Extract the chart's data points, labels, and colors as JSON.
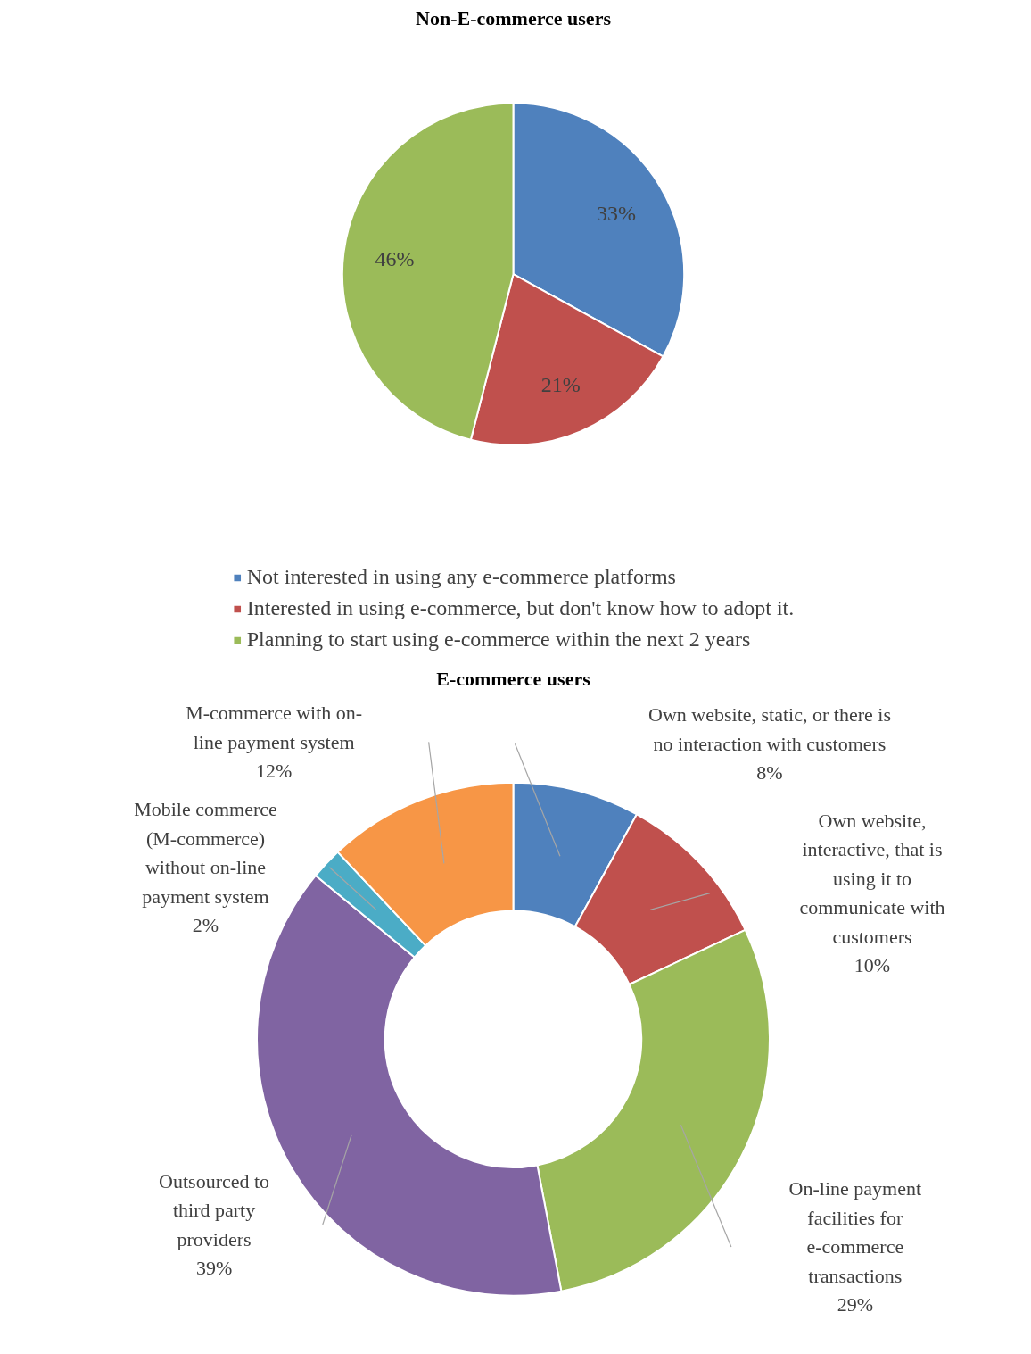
{
  "chart_data": [
    {
      "type": "pie",
      "title": "Non-E-commerce users",
      "categories": [
        "Not interested in using any e-commerce platforms",
        "Interested in using e-commerce, but don't know how to adopt it.",
        "Planning to start using e-commerce within the next 2 years"
      ],
      "values": [
        33,
        21,
        46
      ],
      "value_labels": [
        "33%",
        "21%",
        "46%"
      ],
      "colors": [
        "#4f81bd",
        "#c0504d",
        "#9bbb59"
      ],
      "legend": "bottom"
    },
    {
      "type": "donut",
      "title": "E-commerce users",
      "categories": [
        "Own website, static, or there is no interaction with customers",
        "Own website, interactive, that is using it to communicate with customers",
        "On-line payment facilities for e-commerce transactions",
        "Outsourced to third party providers",
        "Mobile commerce (M-commerce) without on-line payment system",
        "M-commerce with on-line payment system"
      ],
      "values": [
        8,
        10,
        29,
        39,
        2,
        12
      ],
      "value_labels": [
        "8%",
        "10%",
        "29%",
        "39%",
        "2%",
        "12%"
      ],
      "colors": [
        "#4f81bd",
        "#c0504d",
        "#9bbb59",
        "#8064a2",
        "#4bacc6",
        "#f79646"
      ],
      "legend": false
    }
  ]
}
